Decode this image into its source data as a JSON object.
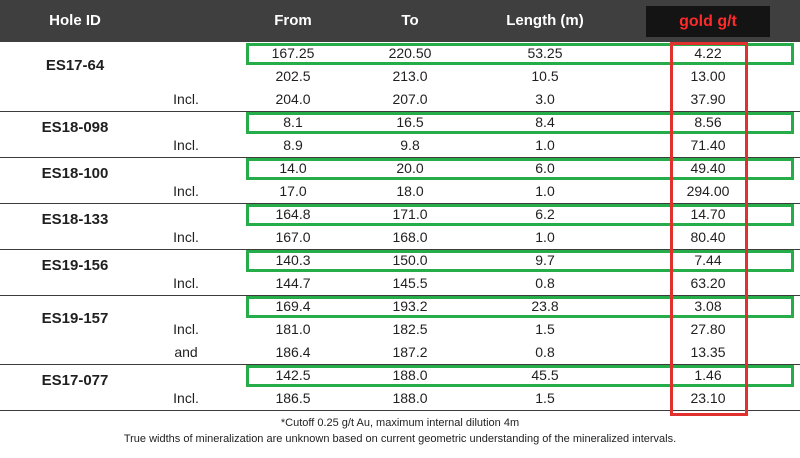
{
  "header": {
    "hole_id": "Hole ID",
    "from": "From",
    "to": "To",
    "length": "Length (m)",
    "gold": "gold g/t"
  },
  "holes": [
    {
      "id": "ES17-64",
      "rows": [
        {
          "qualifier": "",
          "from": "167.25",
          "to": "220.50",
          "length": "53.25",
          "gold": "4.22"
        },
        {
          "qualifier": "",
          "from": "202.5",
          "to": "213.0",
          "length": "10.5",
          "gold": "13.00"
        },
        {
          "qualifier": "Incl.",
          "from": "204.0",
          "to": "207.0",
          "length": "3.0",
          "gold": "37.90"
        }
      ]
    },
    {
      "id": "ES18-098",
      "rows": [
        {
          "qualifier": "",
          "from": "8.1",
          "to": "16.5",
          "length": "8.4",
          "gold": "8.56"
        },
        {
          "qualifier": "Incl.",
          "from": "8.9",
          "to": "9.8",
          "length": "1.0",
          "gold": "71.40"
        }
      ]
    },
    {
      "id": "ES18-100",
      "rows": [
        {
          "qualifier": "",
          "from": "14.0",
          "to": "20.0",
          "length": "6.0",
          "gold": "49.40"
        },
        {
          "qualifier": "Incl.",
          "from": "17.0",
          "to": "18.0",
          "length": "1.0",
          "gold": "294.00"
        }
      ]
    },
    {
      "id": "ES18-133",
      "rows": [
        {
          "qualifier": "",
          "from": "164.8",
          "to": "171.0",
          "length": "6.2",
          "gold": "14.70"
        },
        {
          "qualifier": "Incl.",
          "from": "167.0",
          "to": "168.0",
          "length": "1.0",
          "gold": "80.40"
        }
      ]
    },
    {
      "id": "ES19-156",
      "rows": [
        {
          "qualifier": "",
          "from": "140.3",
          "to": "150.0",
          "length": "9.7",
          "gold": "7.44"
        },
        {
          "qualifier": "Incl.",
          "from": "144.7",
          "to": "145.5",
          "length": "0.8",
          "gold": "63.20"
        }
      ]
    },
    {
      "id": "ES19-157",
      "rows": [
        {
          "qualifier": "",
          "from": "169.4",
          "to": "193.2",
          "length": "23.8",
          "gold": "3.08"
        },
        {
          "qualifier": "Incl.",
          "from": "181.0",
          "to": "182.5",
          "length": "1.5",
          "gold": "27.80"
        },
        {
          "qualifier": "and",
          "from": "186.4",
          "to": "187.2",
          "length": "0.8",
          "gold": "13.35"
        }
      ]
    },
    {
      "id": "ES17-077",
      "rows": [
        {
          "qualifier": "",
          "from": "142.5",
          "to": "188.0",
          "length": "45.5",
          "gold": "1.46"
        },
        {
          "qualifier": "Incl.",
          "from": "186.5",
          "to": "188.0",
          "length": "1.5",
          "gold": "23.10"
        }
      ]
    }
  ],
  "footnotes": {
    "cutoff": "*Cutoff 0.25 g/t Au, maximum internal dilution 4m",
    "true_widths": "True widths of mineralization are unknown based on current geometric understanding of the mineralized intervals."
  },
  "colors": {
    "header_bg": "#3f3f3f",
    "gold_header_bg": "#141414",
    "gold_header_text": "#ff2a2a",
    "highlight_green": "#26ad4a",
    "highlight_red": "#e0312f"
  }
}
